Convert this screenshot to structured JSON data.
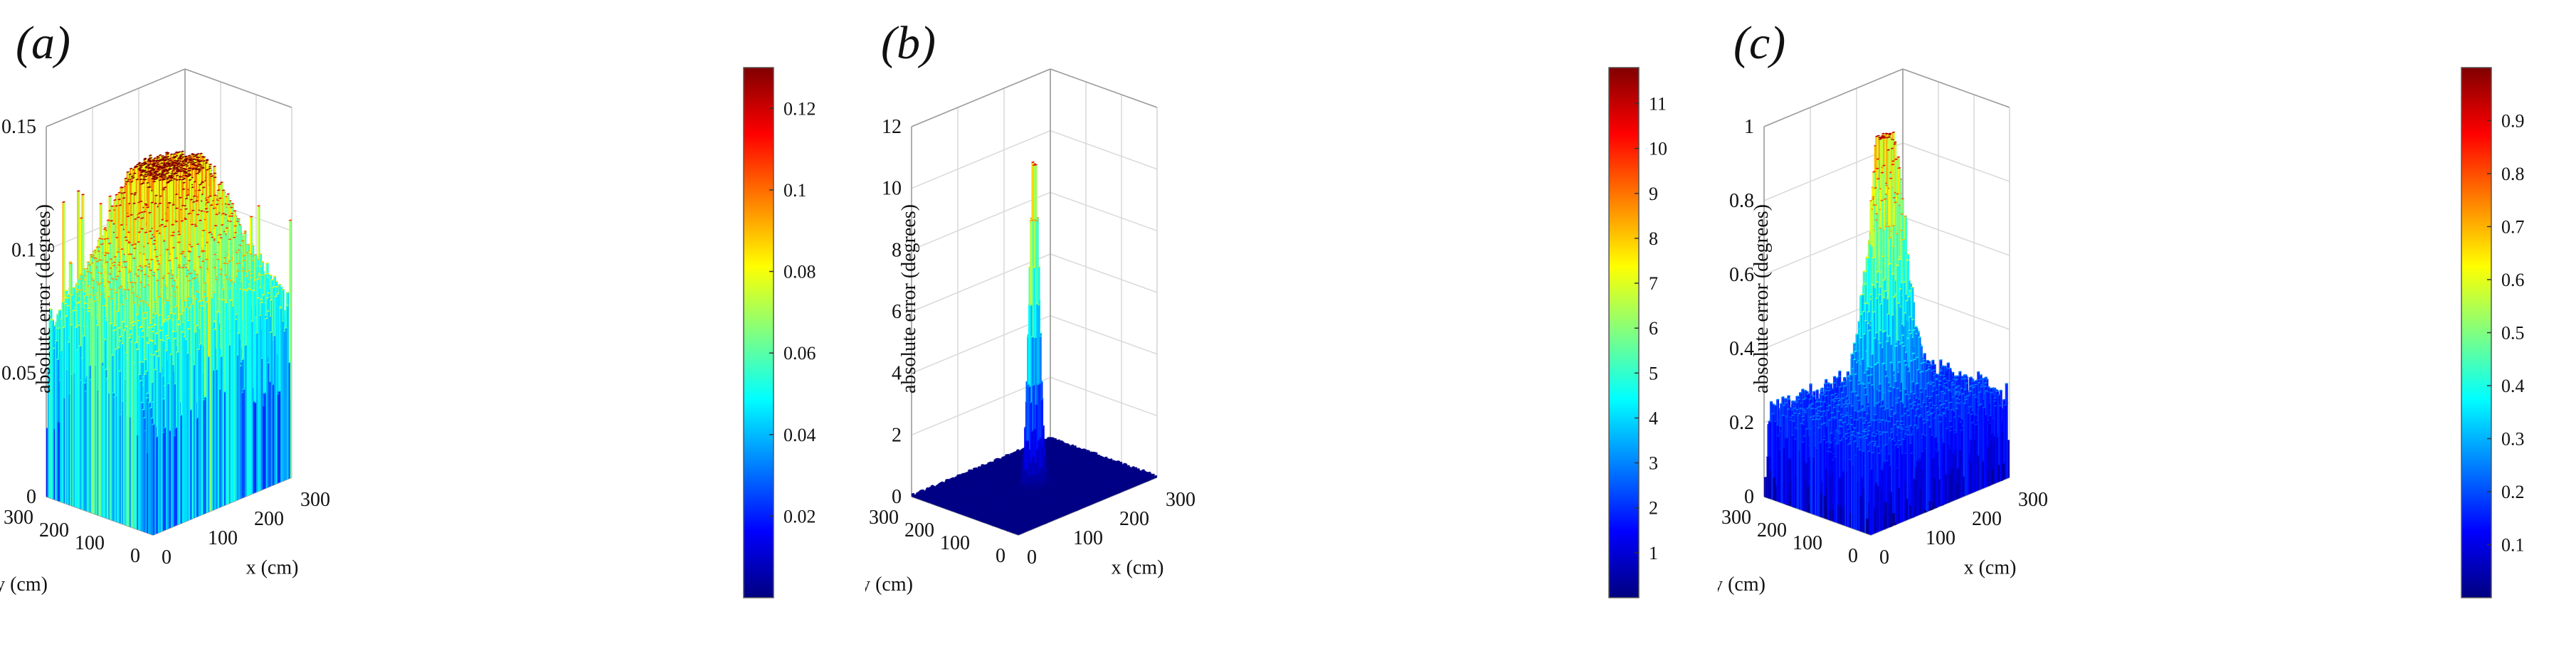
{
  "chart_data": [
    {
      "type": "surface3d",
      "panel_label": "(a)",
      "zlabel": "absolute error (degrees)",
      "xlabel": "x (cm)",
      "ylabel": "y (cm)",
      "xlim": [
        0,
        300
      ],
      "ylim": [
        0,
        300
      ],
      "zlim": [
        0,
        0.15
      ],
      "x_ticks": [
        "0",
        "100",
        "200",
        "300"
      ],
      "y_ticks": [
        "0",
        "100",
        "200",
        "300"
      ],
      "z_ticks": [
        "0",
        "0.05",
        "0.1",
        "0.15"
      ],
      "colorbar_ticks": [
        "0.02",
        "0.04",
        "0.06",
        "0.08",
        "0.1",
        "0.12"
      ],
      "colorbar_range": [
        0,
        0.13
      ],
      "colormap": "jet",
      "grid": true,
      "surface": {
        "baseline": 0.045,
        "noise": 0.025,
        "peak_center": [
          150,
          150
        ],
        "peak_height": 0.13,
        "peak_width_cm": 90,
        "spike_max": 0.13
      }
    },
    {
      "type": "surface3d",
      "panel_label": "(b)",
      "zlabel": "absolute error (degrees)",
      "xlabel": "x (cm)",
      "ylabel": "y (cm)",
      "xlim": [
        0,
        300
      ],
      "ylim": [
        0,
        300
      ],
      "zlim": [
        0,
        12
      ],
      "x_ticks": [
        "0",
        "100",
        "200",
        "300"
      ],
      "y_ticks": [
        "0",
        "100",
        "200",
        "300"
      ],
      "z_ticks": [
        "0",
        "2",
        "4",
        "6",
        "8",
        "10",
        "12"
      ],
      "colorbar_ticks": [
        "1",
        "2",
        "3",
        "4",
        "5",
        "6",
        "7",
        "8",
        "9",
        "10",
        "11"
      ],
      "colorbar_range": [
        0,
        11.8
      ],
      "colormap": "jet",
      "grid": true,
      "surface": {
        "baseline": 0.05,
        "noise": 0.05,
        "peak_center": [
          150,
          150
        ],
        "peak_height": 11.0,
        "peak_width_cm": 8,
        "spike_max": 11.0
      }
    },
    {
      "type": "surface3d",
      "panel_label": "(c)",
      "zlabel": "absolute error (degrees)",
      "xlabel": "x (cm)",
      "ylabel": "y (cm)",
      "xlim": [
        0,
        300
      ],
      "ylim": [
        0,
        300
      ],
      "zlim": [
        0,
        1
      ],
      "x_ticks": [
        "0",
        "100",
        "200",
        "300"
      ],
      "y_ticks": [
        "0",
        "100",
        "200",
        "300"
      ],
      "z_ticks": [
        "0",
        "0.2",
        "0.4",
        "0.6",
        "0.8",
        "1"
      ],
      "colorbar_ticks": [
        "0.1",
        "0.2",
        "0.3",
        "0.4",
        "0.5",
        "0.6",
        "0.7",
        "0.8",
        "0.9"
      ],
      "colorbar_range": [
        0,
        1.0
      ],
      "colormap": "jet",
      "grid": true,
      "surface": {
        "baseline": 0.12,
        "noise": 0.14,
        "peak_center": [
          150,
          150
        ],
        "peak_height": 0.95,
        "peak_width_cm": 30,
        "spike_max": 0.95
      }
    }
  ]
}
